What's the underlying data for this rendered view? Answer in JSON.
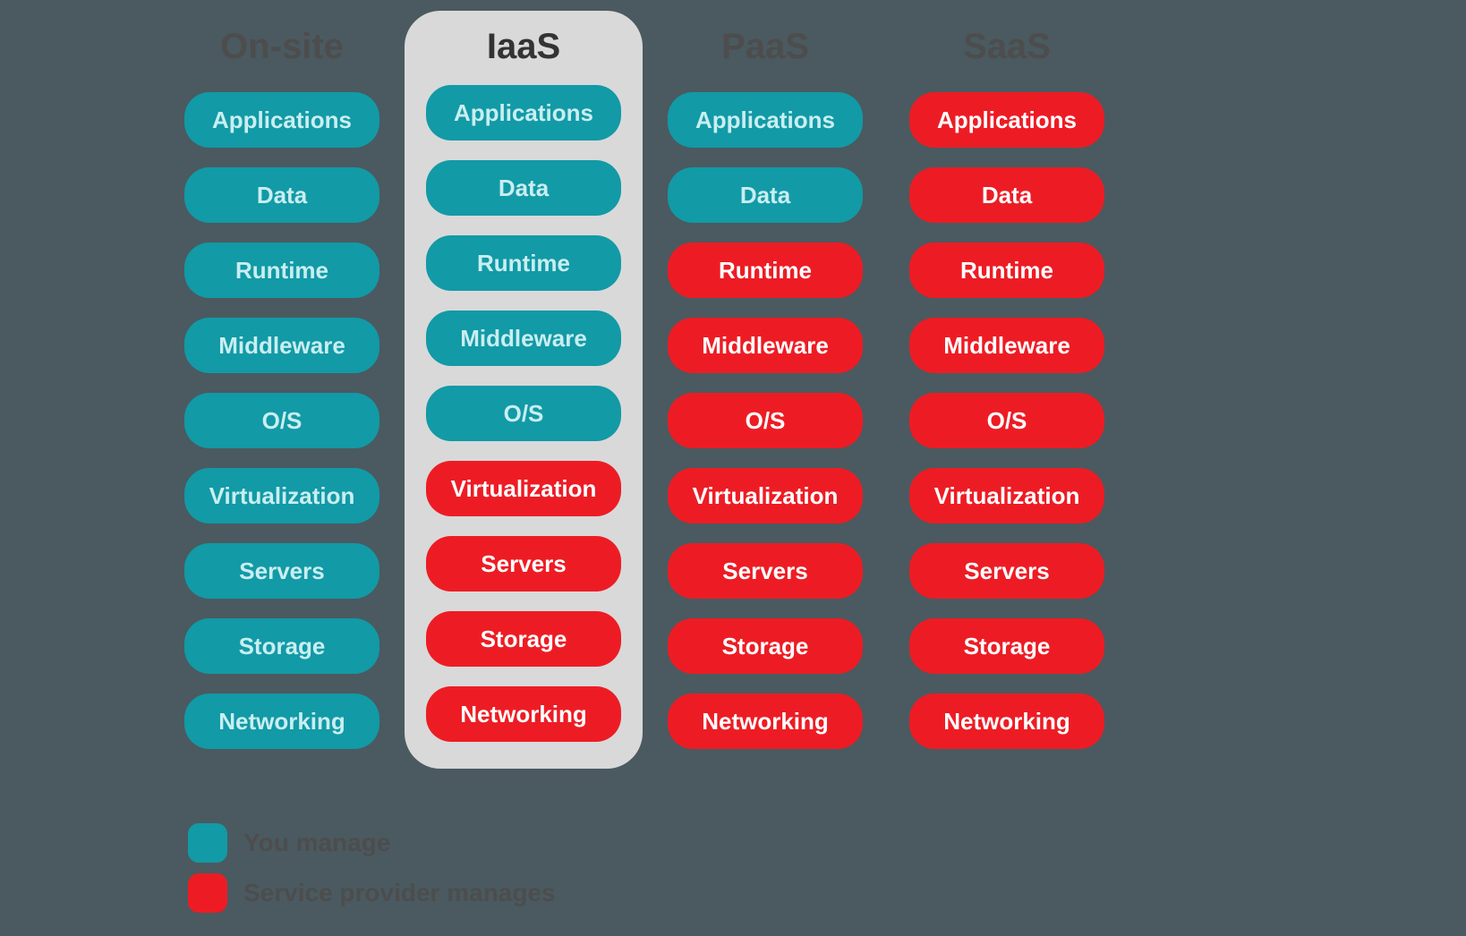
{
  "diagram": {
    "type": "infographic",
    "background_color": "#4a5a60",
    "highlight_background": "#d9d9d9",
    "pill_width": 218,
    "pill_height": 62,
    "pill_radius": 28,
    "title_fontsize": 40,
    "title_color": "#4d4d4d",
    "pill_fontsize": 26,
    "column_gap": 40,
    "pill_gap": 22,
    "colors": {
      "you_manage": "#129aa6",
      "you_manage_text": "#c9eef1",
      "provider_manages": "#ed1c24",
      "provider_manages_text": "#ffffff"
    },
    "layers": [
      "Applications",
      "Data",
      "Runtime",
      "Middleware",
      "O/S",
      "Virtualization",
      "Servers",
      "Storage",
      "Networking"
    ],
    "columns": [
      {
        "title": "On-site",
        "highlighted": false,
        "ownership": [
          "you",
          "you",
          "you",
          "you",
          "you",
          "you",
          "you",
          "you",
          "you"
        ]
      },
      {
        "title": "IaaS",
        "highlighted": true,
        "ownership": [
          "you",
          "you",
          "you",
          "you",
          "you",
          "provider",
          "provider",
          "provider",
          "provider"
        ]
      },
      {
        "title": "PaaS",
        "highlighted": false,
        "ownership": [
          "you",
          "you",
          "provider",
          "provider",
          "provider",
          "provider",
          "provider",
          "provider",
          "provider"
        ]
      },
      {
        "title": "SaaS",
        "highlighted": false,
        "ownership": [
          "provider",
          "provider",
          "provider",
          "provider",
          "provider",
          "provider",
          "provider",
          "provider",
          "provider"
        ]
      }
    ]
  },
  "legend": {
    "you_label": "You manage",
    "provider_label": "Service provider manages"
  }
}
